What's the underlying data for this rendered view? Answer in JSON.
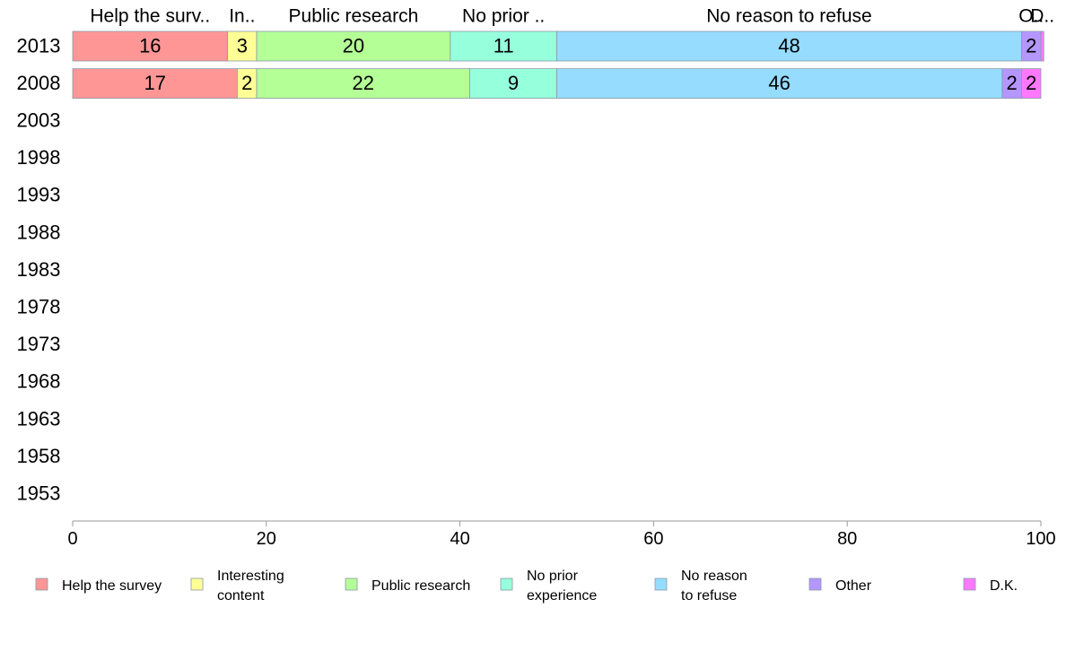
{
  "chart_data": {
    "type": "bar",
    "orientation": "horizontal",
    "stacked": true,
    "categories": [
      "2013",
      "2008",
      "2003",
      "1998",
      "1993",
      "1988",
      "1983",
      "1978",
      "1973",
      "1968",
      "1963",
      "1958",
      "1953"
    ],
    "series": [
      {
        "name": "Help the survey",
        "color": "#ff9696",
        "header_label": "Help the surv..",
        "values": [
          16,
          17,
          null,
          null,
          null,
          null,
          null,
          null,
          null,
          null,
          null,
          null,
          null
        ]
      },
      {
        "name": "Interesting\ncontent",
        "color": "#ffff96",
        "header_label": "In..",
        "values": [
          3,
          2,
          null,
          null,
          null,
          null,
          null,
          null,
          null,
          null,
          null,
          null,
          null
        ]
      },
      {
        "name": "Public research",
        "color": "#b4ff96",
        "header_label": "Public research",
        "values": [
          20,
          22,
          null,
          null,
          null,
          null,
          null,
          null,
          null,
          null,
          null,
          null,
          null
        ]
      },
      {
        "name": "No prior\nexperience",
        "color": "#96ffdc",
        "header_label": "No prior ..",
        "values": [
          11,
          9,
          null,
          null,
          null,
          null,
          null,
          null,
          null,
          null,
          null,
          null,
          null
        ]
      },
      {
        "name": "No reason\nto refuse",
        "color": "#96dcff",
        "header_label": "No reason to refuse",
        "values": [
          48,
          46,
          null,
          null,
          null,
          null,
          null,
          null,
          null,
          null,
          null,
          null,
          null
        ]
      },
      {
        "name": "Other",
        "color": "#b496ff",
        "header_label": "O..",
        "values": [
          2,
          2,
          null,
          null,
          null,
          null,
          null,
          null,
          null,
          null,
          null,
          null,
          null
        ]
      },
      {
        "name": "D.K.",
        "color": "#ff78ff",
        "header_label": "D..",
        "values": [
          0.3,
          2,
          null,
          null,
          null,
          null,
          null,
          null,
          null,
          null,
          null,
          null,
          null
        ]
      }
    ],
    "data_label_threshold": 1,
    "xlim": [
      0,
      100
    ],
    "xticks": [
      0,
      20,
      40,
      60,
      80,
      100
    ],
    "legend_position": "bottom",
    "grid": false
  }
}
